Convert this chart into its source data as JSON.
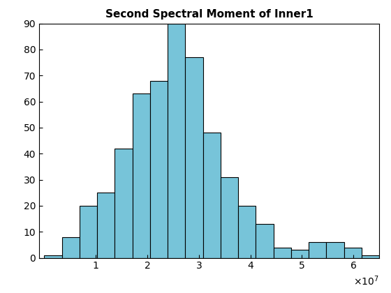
{
  "title": "Second Spectral Moment of Inner1",
  "bar_heights": [
    1,
    8,
    20,
    25,
    42,
    63,
    68,
    90,
    77,
    48,
    31,
    20,
    13,
    4,
    3,
    6,
    6,
    4,
    1
  ],
  "x_start": 0,
  "x_end": 65000000.0,
  "num_bins": 19,
  "bar_color": "#77c4d9",
  "edge_color": "#000000",
  "xlim": [
    -1000000.0,
    65000000.0
  ],
  "ylim": [
    0,
    90
  ],
  "yticks": [
    0,
    10,
    20,
    30,
    40,
    50,
    60,
    70,
    80,
    90
  ],
  "xticks": [
    10000000.0,
    20000000.0,
    30000000.0,
    40000000.0,
    50000000.0,
    60000000.0
  ],
  "title_fontsize": 11,
  "tick_fontsize": 10,
  "figsize": [
    5.6,
    4.2
  ],
  "dpi": 100
}
